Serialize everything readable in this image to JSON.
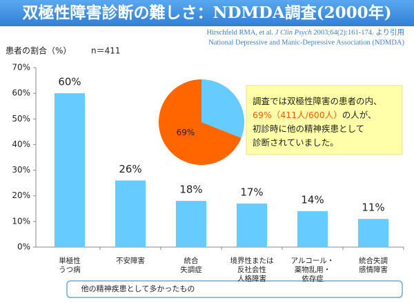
{
  "header": {
    "title": "双極性障害診断の難しさ：NDMDA調査(2000年)"
  },
  "citation": {
    "line1": [
      "Hirschfeld RMA, et al. ",
      "J Clin Psych",
      " 2003;64(2):161-174.  より引用"
    ],
    "line2": "National Depressive and Manic-Depressive Association (NDMDA)"
  },
  "note": {
    "lines": [
      [
        "調査では双極性障害の患者の内、"
      ],
      [
        "69%（411人/600人）",
        "の人が、"
      ],
      [
        "初診時に他の精神疾患として"
      ],
      [
        "診断されていました。"
      ]
    ]
  },
  "chart_data": [
    {
      "type": "bar",
      "y_label": "患者の割合（%）",
      "sample": "n＝411",
      "categories": [
        [
          "単極性",
          "うつ病"
        ],
        [
          "不安障害"
        ],
        [
          "統合",
          "失調症"
        ],
        [
          "境界性または",
          "反社会性",
          "人格障害"
        ],
        [
          "アルコール・",
          "薬物乱用・",
          "依存症"
        ],
        [
          "統合失調",
          "感情障害"
        ]
      ],
      "values": [
        60,
        26,
        18,
        17,
        14,
        11
      ],
      "value_labels": [
        "60%",
        "26%",
        "18%",
        "17%",
        "14%",
        "11%"
      ],
      "color": "#66ccff",
      "ylim": [
        0,
        70
      ],
      "yticks": [
        {
          "value": 0,
          "label": "0%"
        },
        {
          "value": 10,
          "label": "10%"
        },
        {
          "value": 20,
          "label": "20%"
        },
        {
          "value": 30,
          "label": "30%"
        },
        {
          "value": 40,
          "label": "40%"
        },
        {
          "value": 50,
          "label": "50%"
        },
        {
          "value": 60,
          "label": "60%"
        },
        {
          "value": 70,
          "label": "70%"
        }
      ],
      "group_label": "他の精神疾患として多かったもの"
    },
    {
      "type": "pie",
      "values": [
        31,
        69
      ],
      "value_labels": [
        null,
        "69%"
      ],
      "colors": [
        "#66ccff",
        "#ff6600"
      ]
    }
  ]
}
